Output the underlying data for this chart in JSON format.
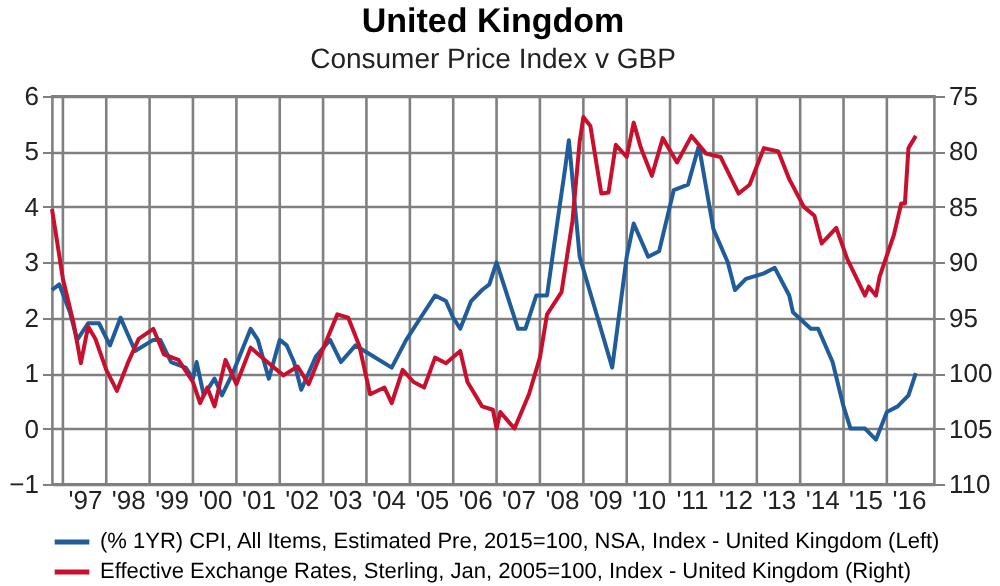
{
  "chart_data": {
    "type": "line",
    "title": "United Kingdom",
    "subtitle": "Consumer Price Index v GBP",
    "xlim": [
      "1996-10",
      "2017-02"
    ],
    "xticks": [
      {
        "value": "1997-01",
        "label": null
      },
      {
        "value": "1997-07",
        "label": "'97"
      },
      {
        "value": "1998-01",
        "label": null
      },
      {
        "value": "1998-07",
        "label": "'98"
      },
      {
        "value": "1999-01",
        "label": null
      },
      {
        "value": "1999-07",
        "label": "'99"
      },
      {
        "value": "2000-01",
        "label": null
      },
      {
        "value": "2000-07",
        "label": "'00"
      },
      {
        "value": "2001-01",
        "label": null
      },
      {
        "value": "2001-07",
        "label": "'01"
      },
      {
        "value": "2002-01",
        "label": null
      },
      {
        "value": "2002-07",
        "label": "'02"
      },
      {
        "value": "2003-01",
        "label": null
      },
      {
        "value": "2003-07",
        "label": "'03"
      },
      {
        "value": "2004-01",
        "label": null
      },
      {
        "value": "2004-07",
        "label": "'04"
      },
      {
        "value": "2005-01",
        "label": null
      },
      {
        "value": "2005-07",
        "label": "'05"
      },
      {
        "value": "2006-01",
        "label": null
      },
      {
        "value": "2006-07",
        "label": "'06"
      },
      {
        "value": "2007-01",
        "label": null
      },
      {
        "value": "2007-07",
        "label": "'07"
      },
      {
        "value": "2008-01",
        "label": null
      },
      {
        "value": "2008-07",
        "label": "'08"
      },
      {
        "value": "2009-01",
        "label": null
      },
      {
        "value": "2009-07",
        "label": "'09"
      },
      {
        "value": "2010-01",
        "label": null
      },
      {
        "value": "2010-07",
        "label": "'10"
      },
      {
        "value": "2011-01",
        "label": null
      },
      {
        "value": "2011-07",
        "label": "'11"
      },
      {
        "value": "2012-01",
        "label": null
      },
      {
        "value": "2012-07",
        "label": "'12"
      },
      {
        "value": "2013-01",
        "label": null
      },
      {
        "value": "2013-07",
        "label": "'13"
      },
      {
        "value": "2014-01",
        "label": null
      },
      {
        "value": "2014-07",
        "label": "'14"
      },
      {
        "value": "2015-01",
        "label": null
      },
      {
        "value": "2015-07",
        "label": "'15"
      },
      {
        "value": "2016-01",
        "label": null
      },
      {
        "value": "2016-07",
        "label": "'16"
      }
    ],
    "ylim": [
      -1,
      6
    ],
    "yticks": [
      -1,
      0,
      1,
      2,
      3,
      4,
      5,
      6
    ],
    "y2lim": [
      110,
      75
    ],
    "y2ticks": [
      75,
      80,
      85,
      90,
      95,
      100,
      105,
      110
    ],
    "grid": true,
    "legend": "bottom",
    "line_style": "solid",
    "marker": "none",
    "series": [
      {
        "name": "(% 1YR) CPI, All Items, Estimated Pre, 2015=100, NSA, Index - United Kingdom  (Left)",
        "color": "#1f5c99",
        "x": [
          "1996-10",
          "1996-12",
          "1997-03",
          "1997-05",
          "1997-08",
          "1997-11",
          "1998-02",
          "1998-05",
          "1998-09",
          "1999-02",
          "1999-04",
          "1999-07",
          "1999-11",
          "2000-01",
          "2000-02",
          "2000-04",
          "2000-07",
          "2000-09",
          "2000-12",
          "2001-05",
          "2001-07",
          "2001-10",
          "2002-01",
          "2002-03",
          "2002-05",
          "2002-07",
          "2002-11",
          "2003-03",
          "2003-06",
          "2003-10",
          "2004-03",
          "2004-08",
          "2004-12",
          "2005-04",
          "2005-08",
          "2005-11",
          "2006-01",
          "2006-03",
          "2006-06",
          "2006-09",
          "2006-11",
          "2007-01",
          "2007-07",
          "2007-09",
          "2007-12",
          "2008-03",
          "2008-06",
          "2008-08",
          "2008-09",
          "2008-12",
          "2009-05",
          "2009-09",
          "2010-01",
          "2010-03",
          "2010-07",
          "2010-10",
          "2011-02",
          "2011-06",
          "2011-09",
          "2012-01",
          "2012-05",
          "2012-07",
          "2012-10",
          "2013-03",
          "2013-06",
          "2013-10",
          "2013-11",
          "2014-04",
          "2014-06",
          "2014-10",
          "2015-01",
          "2015-03",
          "2015-07",
          "2015-10",
          "2016-01",
          "2016-04",
          "2016-07",
          "2016-09"
        ],
        "values": [
          2.5,
          2.6,
          2.1,
          1.6,
          1.9,
          1.9,
          1.5,
          2.0,
          1.4,
          1.6,
          1.6,
          1.2,
          1.1,
          0.9,
          1.2,
          0.6,
          0.9,
          0.6,
          1.0,
          1.8,
          1.6,
          0.9,
          1.6,
          1.5,
          1.2,
          0.7,
          1.3,
          1.6,
          1.2,
          1.5,
          1.3,
          1.1,
          1.6,
          2.0,
          2.4,
          2.3,
          2.0,
          1.8,
          2.3,
          2.5,
          2.6,
          3.0,
          1.8,
          1.8,
          2.4,
          2.4,
          3.8,
          4.7,
          5.2,
          3.1,
          2.0,
          1.1,
          3.1,
          3.7,
          3.1,
          3.2,
          4.3,
          4.4,
          5.1,
          3.6,
          3.0,
          2.5,
          2.7,
          2.8,
          2.9,
          2.4,
          2.1,
          1.8,
          1.8,
          1.2,
          0.4,
          0.0,
          0.0,
          -0.2,
          0.3,
          0.4,
          0.6,
          1.0
        ]
      },
      {
        "name": "Effective Exchange Rates, Sterling, Jan, 2005=100, Index - United Kingdom  (Right)",
        "color": "#c8102e",
        "axis": "y2",
        "x": [
          "1996-10",
          "1997-01",
          "1997-04",
          "1997-06",
          "1997-08",
          "1997-10",
          "1998-01",
          "1998-04",
          "1998-07",
          "1998-10",
          "1999-02",
          "1999-05",
          "1999-09",
          "2000-01",
          "2000-03",
          "2000-05",
          "2000-07",
          "2000-10",
          "2001-01",
          "2001-05",
          "2001-10",
          "2002-02",
          "2002-06",
          "2002-09",
          "2002-12",
          "2003-05",
          "2003-08",
          "2003-11",
          "2004-02",
          "2004-06",
          "2004-08",
          "2004-11",
          "2005-02",
          "2005-05",
          "2005-08",
          "2005-11",
          "2006-03",
          "2006-05",
          "2006-09",
          "2006-12",
          "2007-01",
          "2007-02",
          "2007-06",
          "2007-10",
          "2008-01",
          "2008-03",
          "2008-07",
          "2008-10",
          "2008-12",
          "2009-01",
          "2009-03",
          "2009-06",
          "2009-08",
          "2009-10",
          "2010-01",
          "2010-03",
          "2010-05",
          "2010-08",
          "2010-11",
          "2011-03",
          "2011-07",
          "2011-11",
          "2012-03",
          "2012-08",
          "2012-11",
          "2013-03",
          "2013-07",
          "2013-10",
          "2014-02",
          "2014-05",
          "2014-07",
          "2014-11",
          "2015-02",
          "2015-07",
          "2015-08",
          "2015-10",
          "2015-11",
          "2016-03",
          "2016-05",
          "2016-06",
          "2016-07",
          "2016-09"
        ],
        "values": [
          85.2,
          91.5,
          95.5,
          99.1,
          95.8,
          96.9,
          99.7,
          101.6,
          99.1,
          96.9,
          96.0,
          98.3,
          98.8,
          100.8,
          102.7,
          101.3,
          103.0,
          98.8,
          101.0,
          97.7,
          99.1,
          100.2,
          99.4,
          101.0,
          98.6,
          94.7,
          95.0,
          97.5,
          101.9,
          101.3,
          102.7,
          99.7,
          100.8,
          101.3,
          98.6,
          99.1,
          98.0,
          100.8,
          103.0,
          103.3,
          105.0,
          103.5,
          105.0,
          101.9,
          98.6,
          94.7,
          92.7,
          86.3,
          79.1,
          76.9,
          77.7,
          83.8,
          83.7,
          79.4,
          80.5,
          77.4,
          79.7,
          82.2,
          78.8,
          81.0,
          78.6,
          80.2,
          80.5,
          83.8,
          83.0,
          79.7,
          80.0,
          82.5,
          85.0,
          85.8,
          88.3,
          86.9,
          89.7,
          93.0,
          92.2,
          93.0,
          91.3,
          87.5,
          84.7,
          84.7,
          79.7,
          78.6
        ]
      }
    ]
  }
}
